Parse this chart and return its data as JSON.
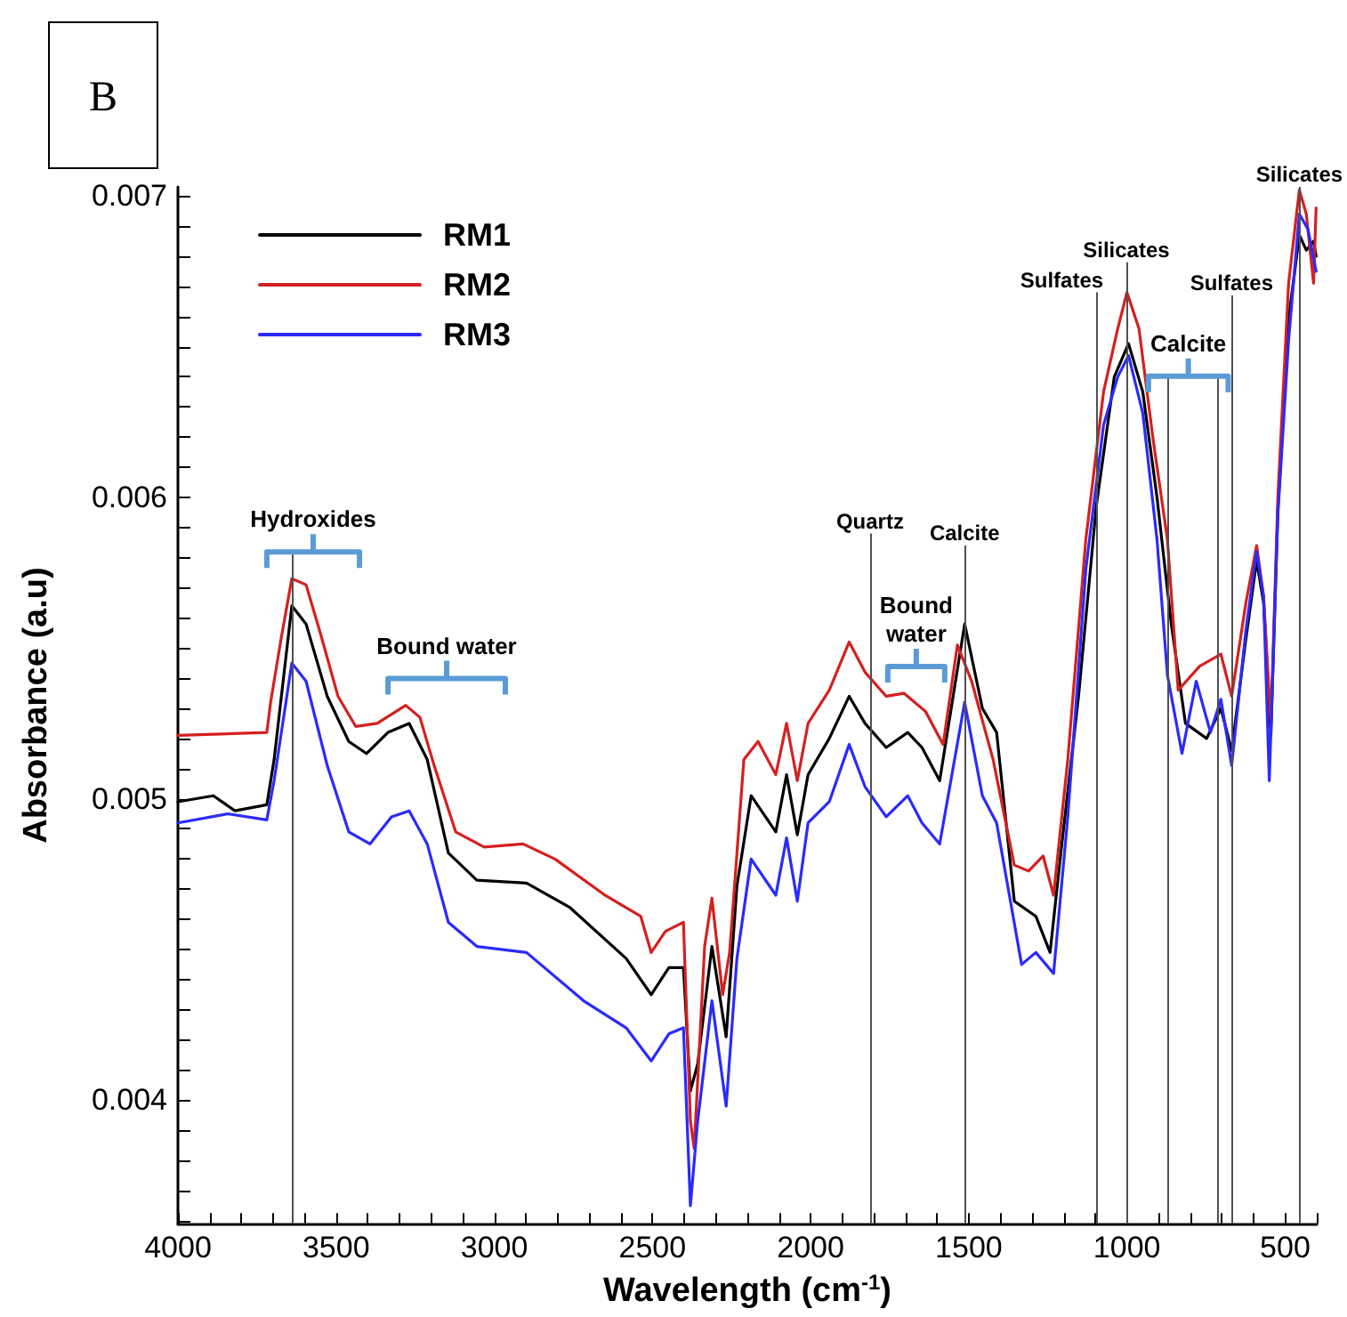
{
  "chart_data": {
    "type": "line",
    "xlabel": "Wavelength (cm$^{-1}$)",
    "ylabel": "Absorbance (a.u)",
    "legend": "top left",
    "grid": false,
    "marker": "none",
    "line_style": "solid",
    "xlim": [
      4000,
      400
    ],
    "ylim": [
      0.00359,
      0.00703
    ],
    "xticks": [
      4000,
      {
        "value": 3900,
        "label": null
      },
      {
        "value": 3800,
        "label": null
      },
      {
        "value": 3700,
        "label": null
      },
      {
        "value": 3600,
        "label": null
      },
      3500,
      {
        "value": 3400,
        "label": null
      },
      {
        "value": 3300,
        "label": null
      },
      {
        "value": 3200,
        "label": null
      },
      {
        "value": 3100,
        "label": null
      },
      3000,
      {
        "value": 2900,
        "label": null
      },
      {
        "value": 2800,
        "label": null
      },
      {
        "value": 2700,
        "label": null
      },
      {
        "value": 2600,
        "label": null
      },
      2500,
      {
        "value": 2400,
        "label": null
      },
      {
        "value": 2300,
        "label": null
      },
      {
        "value": 2200,
        "label": null
      },
      {
        "value": 2100,
        "label": null
      },
      2000,
      {
        "value": 1900,
        "label": null
      },
      {
        "value": 1800,
        "label": null
      },
      {
        "value": 1700,
        "label": null
      },
      {
        "value": 1600,
        "label": null
      },
      1500,
      {
        "value": 1400,
        "label": null
      },
      {
        "value": 1300,
        "label": null
      },
      {
        "value": 1200,
        "label": null
      },
      {
        "value": 1100,
        "label": null
      },
      1000,
      {
        "value": 900,
        "label": null
      },
      {
        "value": 800,
        "label": null
      },
      {
        "value": 700,
        "label": null
      },
      {
        "value": 600,
        "label": null
      },
      500,
      {
        "value": 400,
        "label": null
      }
    ],
    "yticks": [
      {
        "value": 0.0036,
        "label": null
      },
      {
        "value": 0.0037,
        "label": null
      },
      {
        "value": 0.0038,
        "label": null
      },
      {
        "value": 0.0039,
        "label": null
      },
      0.004,
      {
        "value": 0.0041,
        "label": null
      },
      {
        "value": 0.0042,
        "label": null
      },
      {
        "value": 0.0043,
        "label": null
      },
      {
        "value": 0.0044,
        "label": null
      },
      {
        "value": 0.0045,
        "label": null
      },
      {
        "value": 0.0046,
        "label": null
      },
      {
        "value": 0.0047,
        "label": null
      },
      {
        "value": 0.0048,
        "label": null
      },
      {
        "value": 0.0049,
        "label": null
      },
      0.005,
      {
        "value": 0.0051,
        "label": null
      },
      {
        "value": 0.0052,
        "label": null
      },
      {
        "value": 0.0053,
        "label": null
      },
      {
        "value": 0.0054,
        "label": null
      },
      {
        "value": 0.0055,
        "label": null
      },
      {
        "value": 0.0056,
        "label": null
      },
      {
        "value": 0.0057,
        "label": null
      },
      {
        "value": 0.0058,
        "label": null
      },
      {
        "value": 0.0059,
        "label": null
      },
      0.006,
      {
        "value": 0.0061,
        "label": null
      },
      {
        "value": 0.0062,
        "label": null
      },
      {
        "value": 0.0063,
        "label": null
      },
      {
        "value": 0.0064,
        "label": null
      },
      {
        "value": 0.0065,
        "label": null
      },
      {
        "value": 0.0066,
        "label": null
      },
      {
        "value": 0.0067,
        "label": null
      },
      {
        "value": 0.0068,
        "label": null
      },
      {
        "value": 0.0069,
        "label": null
      },
      0.007
    ],
    "series": [
      {
        "name": "RM1",
        "color": "#000000",
        "x": [
          4000,
          3888,
          3820,
          3719,
          3696,
          3640,
          3595,
          3528,
          3460,
          3404,
          3336,
          3269,
          3212,
          3145,
          3055,
          2898,
          2762,
          2583,
          2504,
          2448,
          2402,
          2380,
          2357,
          2312,
          2267,
          2233,
          2188,
          2110,
          2076,
          2042,
          2008,
          1941,
          1878,
          1828,
          1761,
          1693,
          1648,
          1592,
          1513,
          1457,
          1412,
          1356,
          1288,
          1243,
          1209,
          1153,
          1097,
          1040,
          995,
          950,
          905,
          860,
          815,
          748,
          703,
          669,
          624,
          590,
          568,
          545,
          523,
          489,
          455,
          433,
          410,
          402
        ],
        "values": [
          0.00499,
          0.00501,
          0.00496,
          0.00498,
          0.00513,
          0.00564,
          0.00558,
          0.00534,
          0.00519,
          0.00515,
          0.00522,
          0.00525,
          0.00513,
          0.00482,
          0.00473,
          0.00472,
          0.00464,
          0.00447,
          0.00435,
          0.00444,
          0.00444,
          0.00403,
          0.00412,
          0.00451,
          0.00421,
          0.00471,
          0.00501,
          0.00489,
          0.00508,
          0.00488,
          0.00508,
          0.0052,
          0.00534,
          0.00525,
          0.00517,
          0.00522,
          0.00517,
          0.00506,
          0.00558,
          0.0053,
          0.00522,
          0.00466,
          0.00461,
          0.00449,
          0.00482,
          0.00534,
          0.00597,
          0.0064,
          0.00651,
          0.00635,
          0.006,
          0.00558,
          0.00525,
          0.0052,
          0.0053,
          0.00516,
          0.00553,
          0.00579,
          0.00565,
          0.00521,
          0.00596,
          0.00659,
          0.00687,
          0.00682,
          0.00685,
          0.0068
        ]
      },
      {
        "name": "RM2",
        "color": "#d42020",
        "x": [
          4000,
          3719,
          3707,
          3674,
          3640,
          3595,
          3550,
          3494,
          3438,
          3370,
          3280,
          3235,
          3190,
          3122,
          3032,
          2909,
          2808,
          2650,
          2537,
          2504,
          2459,
          2402,
          2380,
          2368,
          2335,
          2312,
          2278,
          2256,
          2211,
          2166,
          2110,
          2076,
          2042,
          2008,
          1941,
          1878,
          1828,
          1761,
          1705,
          1637,
          1581,
          1536,
          1491,
          1423,
          1356,
          1311,
          1265,
          1232,
          1187,
          1130,
          1074,
          1029,
          1000,
          962,
          917,
          872,
          838,
          770,
          703,
          669,
          624,
          590,
          568,
          545,
          523,
          489,
          455,
          433,
          410,
          402
        ],
        "values": [
          0.00521,
          0.00522,
          0.00532,
          0.00553,
          0.00573,
          0.00571,
          0.00555,
          0.00534,
          0.00524,
          0.00525,
          0.00531,
          0.00527,
          0.00511,
          0.00489,
          0.00484,
          0.00485,
          0.0048,
          0.00468,
          0.00461,
          0.00449,
          0.00456,
          0.00459,
          0.00393,
          0.00384,
          0.00451,
          0.00467,
          0.00435,
          0.00449,
          0.00513,
          0.00519,
          0.00508,
          0.00525,
          0.00506,
          0.00525,
          0.00536,
          0.00552,
          0.00542,
          0.00534,
          0.00535,
          0.00529,
          0.00518,
          0.00551,
          0.00539,
          0.00513,
          0.00478,
          0.00476,
          0.00481,
          0.00468,
          0.00513,
          0.00586,
          0.00635,
          0.00656,
          0.00668,
          0.00656,
          0.00619,
          0.00586,
          0.00536,
          0.00544,
          0.00548,
          0.00534,
          0.00565,
          0.00584,
          0.00567,
          0.00525,
          0.006,
          0.00671,
          0.00702,
          0.00694,
          0.00671,
          0.00696
        ]
      },
      {
        "name": "RM3",
        "color": "#2a2aff",
        "x": [
          4000,
          3843,
          3719,
          3696,
          3640,
          3595,
          3528,
          3460,
          3393,
          3325,
          3269,
          3212,
          3145,
          3055,
          2898,
          2718,
          2583,
          2504,
          2448,
          2402,
          2380,
          2357,
          2312,
          2267,
          2233,
          2188,
          2110,
          2076,
          2042,
          2008,
          1941,
          1878,
          1828,
          1761,
          1693,
          1648,
          1592,
          1513,
          1457,
          1412,
          1333,
          1288,
          1232,
          1187,
          1130,
          1074,
          1029,
          995,
          950,
          905,
          872,
          826,
          781,
          736,
          703,
          669,
          624,
          590,
          568,
          550,
          523,
          489,
          455,
          428,
          402
        ],
        "values": [
          0.00492,
          0.00495,
          0.00493,
          0.00506,
          0.00545,
          0.00539,
          0.00511,
          0.00489,
          0.00485,
          0.00494,
          0.00496,
          0.00485,
          0.00459,
          0.00451,
          0.00449,
          0.00433,
          0.00424,
          0.00413,
          0.00422,
          0.00424,
          0.00365,
          0.00393,
          0.00433,
          0.00398,
          0.00447,
          0.0048,
          0.00468,
          0.00487,
          0.00466,
          0.00492,
          0.00499,
          0.00518,
          0.00504,
          0.00494,
          0.00501,
          0.00492,
          0.00485,
          0.00532,
          0.00501,
          0.00492,
          0.00445,
          0.00449,
          0.00442,
          0.00494,
          0.00576,
          0.00624,
          0.0064,
          0.00647,
          0.00628,
          0.00586,
          0.00541,
          0.00515,
          0.00539,
          0.00522,
          0.00533,
          0.00511,
          0.00556,
          0.00582,
          0.00567,
          0.00506,
          0.00594,
          0.00652,
          0.00694,
          0.00689,
          0.00675
        ]
      }
    ],
    "annotations": [
      "B",
      "Hydroxides",
      "Bound water",
      "Bound water",
      "Calcite",
      {
        "text": "Quartz",
        "x": 1812,
        "y": 0.00588
      },
      {
        "text": "Calcite",
        "x": 1513,
        "y": 0.00584
      },
      {
        "text": "Sulfates",
        "x": 1097,
        "y": 0.00668
      },
      {
        "text": "Silicates",
        "x": 1002,
        "y": 0.00678
      },
      {
        "text": "Sulfates",
        "x": 669,
        "y": 0.00667
      },
      {
        "text": "Silicates",
        "x": 455,
        "y": 0.00703
      }
    ],
    "ref_lines": [
      {
        "axis": "x",
        "value": 3640,
        "color": "#505050"
      },
      {
        "axis": "x",
        "value": 1812,
        "color": "#505050"
      },
      {
        "axis": "x",
        "value": 1513,
        "color": "#505050"
      },
      {
        "axis": "x",
        "value": 1097,
        "color": "#505050"
      },
      {
        "axis": "x",
        "value": 1002,
        "color": "#505050"
      },
      {
        "axis": "x",
        "value": 872,
        "color": "#505050"
      },
      {
        "axis": "x",
        "value": 714,
        "color": "#505050"
      },
      {
        "axis": "x",
        "value": 669,
        "color": "#505050"
      },
      {
        "axis": "x",
        "value": 455,
        "color": "#505050"
      }
    ]
  }
}
